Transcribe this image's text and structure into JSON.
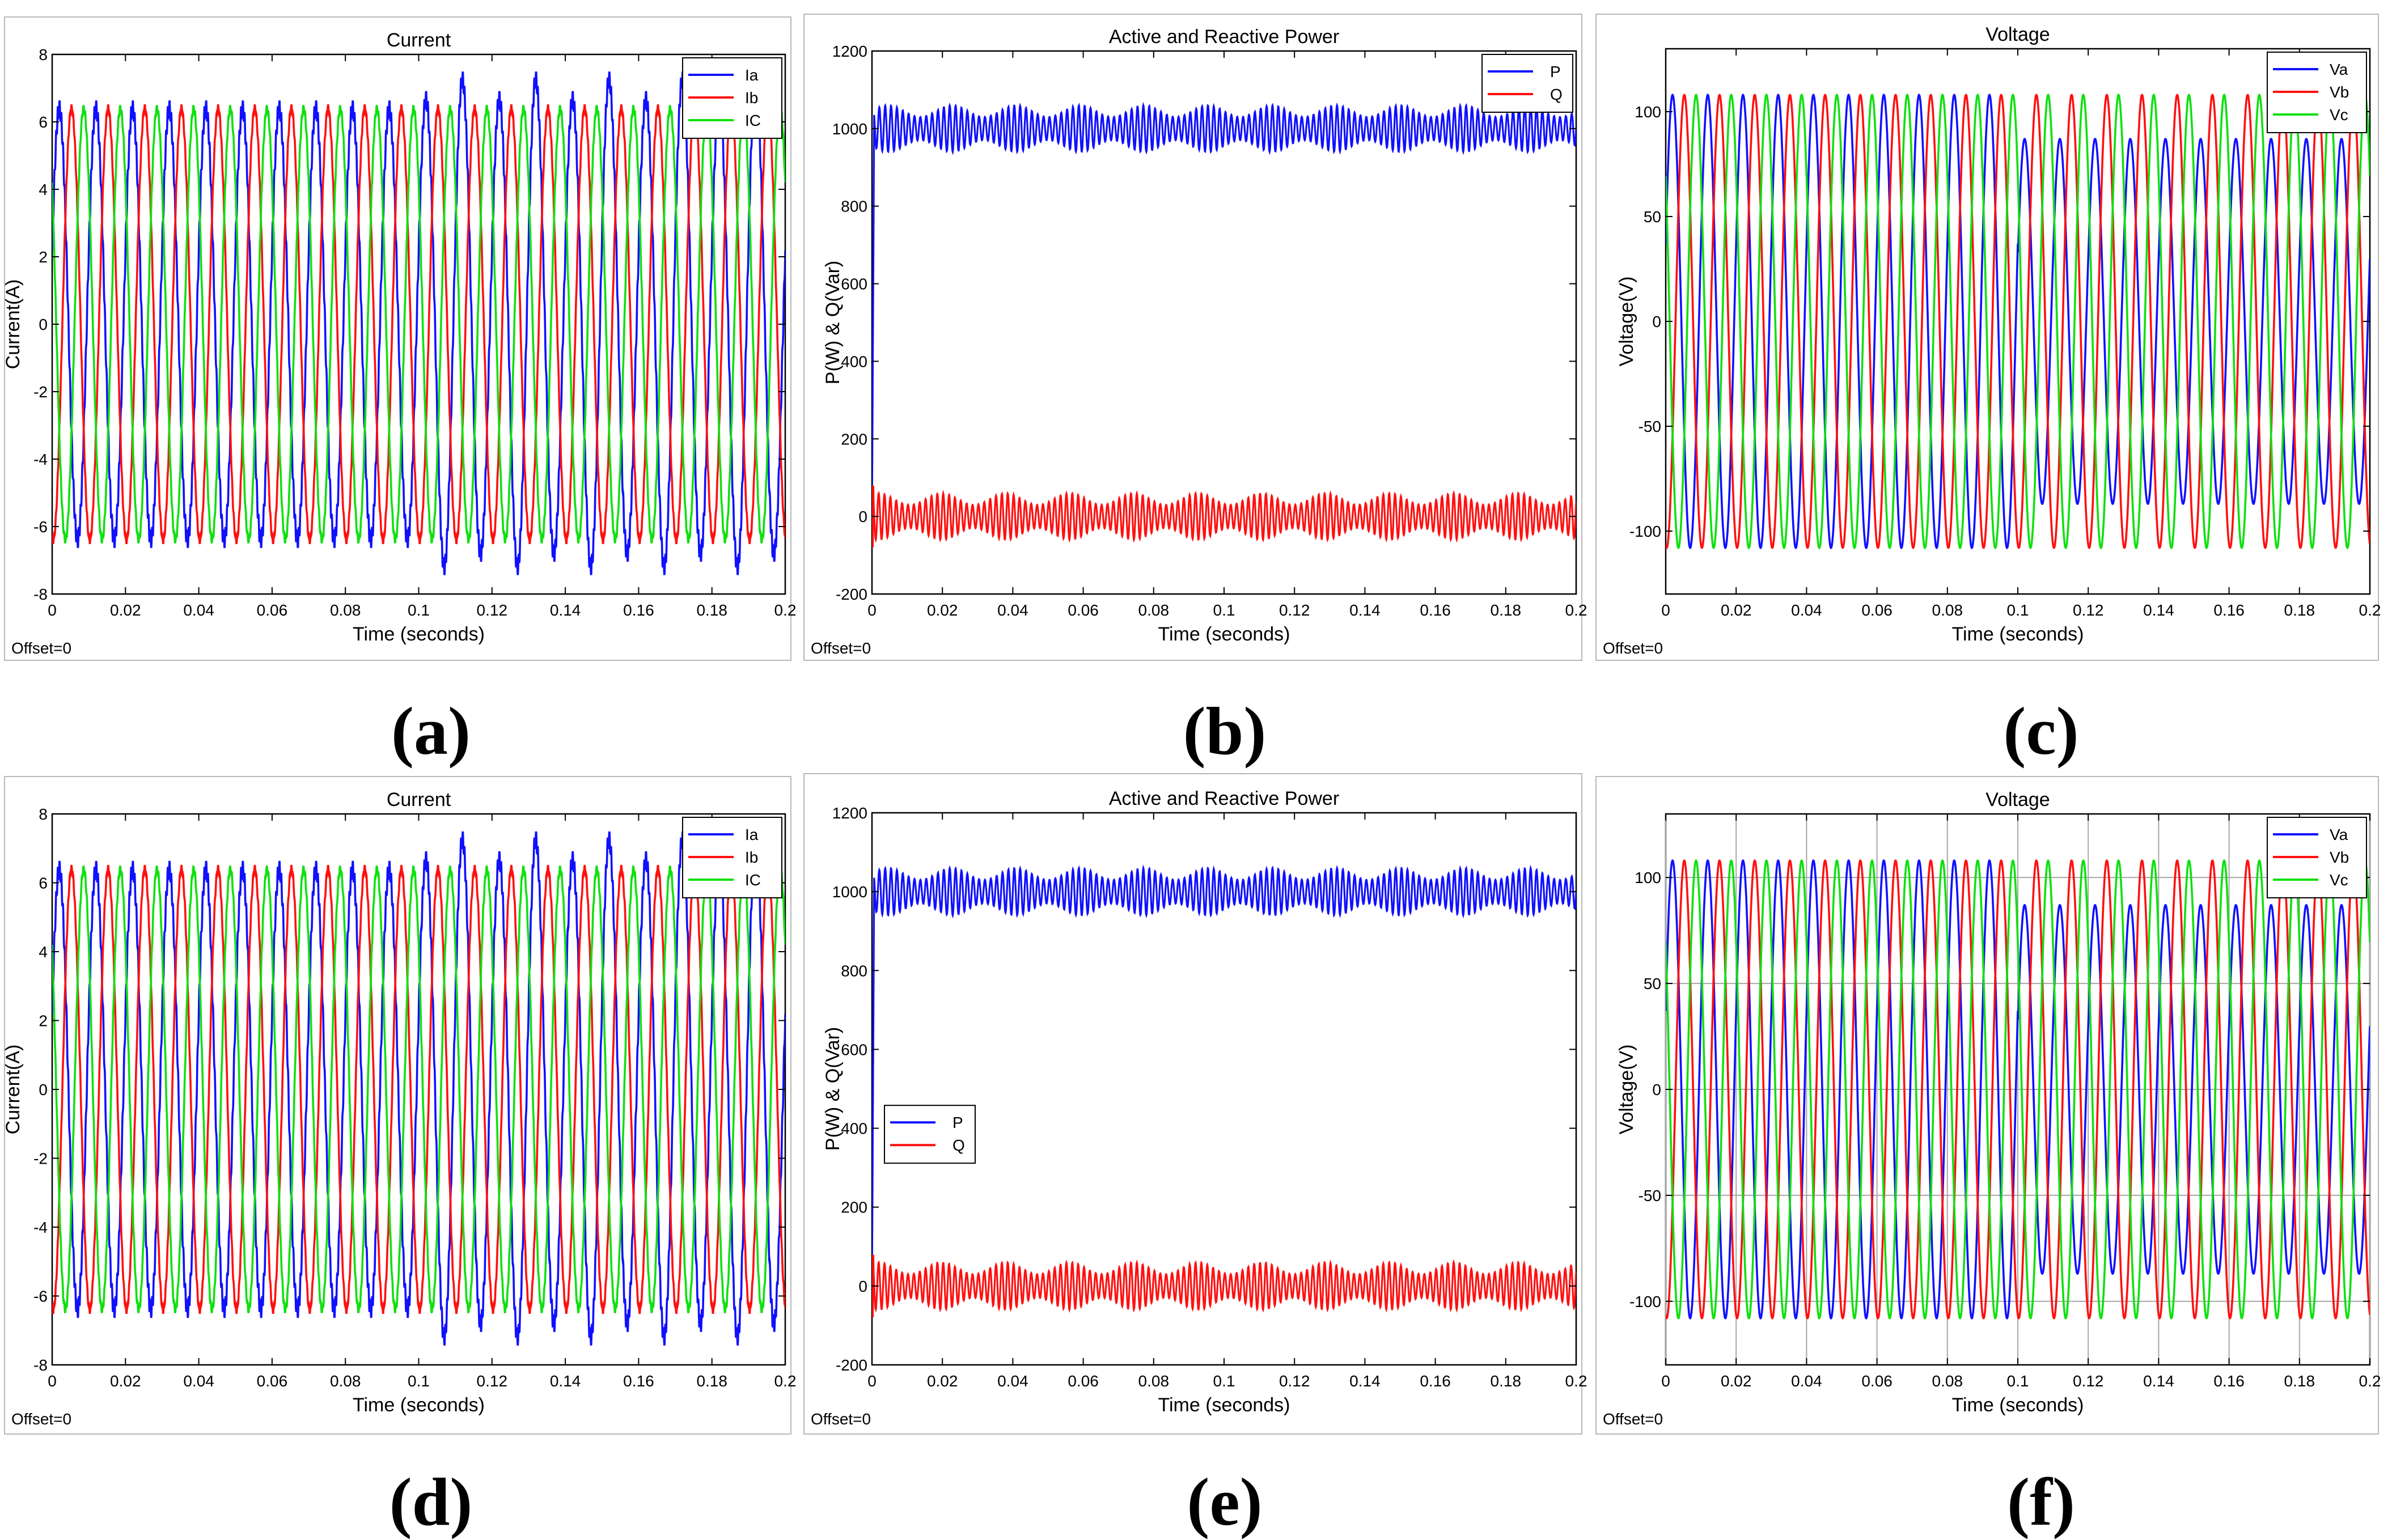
{
  "colors": {
    "blue": "#1010ff",
    "red": "#ff1010",
    "green": "#10e010"
  },
  "chart_data": [
    {
      "panel": "(a)",
      "type": "line",
      "title": "Current",
      "xlabel": "Time (seconds)",
      "ylabel": "Current(A)",
      "offset_label": "Offset=0",
      "xlim": [
        0,
        0.2
      ],
      "ylim": [
        -8,
        8
      ],
      "xticks": [
        0,
        0.02,
        0.04,
        0.06,
        0.08,
        0.1,
        0.12,
        0.14,
        0.16,
        0.18,
        0.2
      ],
      "yticks": [
        -8,
        -6,
        -4,
        -2,
        0,
        2,
        4,
        6,
        8
      ],
      "grid": false,
      "legend_position": "top-right",
      "series": [
        {
          "name": "Ia",
          "color": "blue",
          "amplitude": 6.4,
          "phase_deg": 0,
          "frequency_hz": 100,
          "ripple": 0.25,
          "note": "peaks reach about 7.3 A between 0.1 s and 0.2 s"
        },
        {
          "name": "Ib",
          "color": "red",
          "amplitude": 6.4,
          "phase_deg": -120,
          "frequency_hz": 100,
          "ripple": 0.1
        },
        {
          "name": "IC",
          "color": "green",
          "amplitude": 6.4,
          "phase_deg": 120,
          "frequency_hz": 100,
          "ripple": 0.1
        }
      ]
    },
    {
      "panel": "(b)",
      "type": "line",
      "title": "Active and Reactive Power",
      "xlabel": "Time (seconds)",
      "ylabel": "P(W) & Q(Var)",
      "offset_label": "Offset=0",
      "xlim": [
        0,
        0.2
      ],
      "ylim": [
        -200,
        1200
      ],
      "xticks": [
        0,
        0.02,
        0.04,
        0.06,
        0.08,
        0.1,
        0.12,
        0.14,
        0.16,
        0.18,
        0.2
      ],
      "yticks": [
        -200,
        0,
        200,
        400,
        600,
        800,
        1000,
        1200
      ],
      "grid": false,
      "legend_position": "top-right",
      "series": [
        {
          "name": "P",
          "color": "blue",
          "mean": 1000,
          "band": [
            940,
            1060
          ]
        },
        {
          "name": "Q",
          "color": "red",
          "mean": 0,
          "band": [
            -60,
            60
          ]
        }
      ]
    },
    {
      "panel": "(c)",
      "type": "line",
      "title": "Voltage",
      "xlabel": "Time (seconds)",
      "ylabel": "Voltage(V)",
      "offset_label": "Offset=0",
      "xlim": [
        0,
        0.2
      ],
      "ylim": [
        -130,
        130
      ],
      "xticks": [
        0,
        0.02,
        0.04,
        0.06,
        0.08,
        0.1,
        0.12,
        0.14,
        0.16,
        0.18,
        0.2
      ],
      "yticks": [
        -100,
        -50,
        0,
        50,
        100
      ],
      "grid": false,
      "legend_position": "top-right",
      "series": [
        {
          "name": "Va",
          "color": "blue",
          "amplitude": 108,
          "phase_deg": 0,
          "frequency_hz": 100,
          "note": "amplitude drops to about 87 V after 0.1 s"
        },
        {
          "name": "Vb",
          "color": "red",
          "amplitude": 108,
          "phase_deg": -120,
          "frequency_hz": 100
        },
        {
          "name": "Vc",
          "color": "green",
          "amplitude": 108,
          "phase_deg": 120,
          "frequency_hz": 100
        }
      ]
    },
    {
      "panel": "(d)",
      "type": "line",
      "title": "Current",
      "xlabel": "Time (seconds)",
      "ylabel": "Current(A)",
      "offset_label": "Offset=0",
      "xlim": [
        0,
        0.2
      ],
      "ylim": [
        -8,
        8
      ],
      "xticks": [
        0,
        0.02,
        0.04,
        0.06,
        0.08,
        0.1,
        0.12,
        0.14,
        0.16,
        0.18,
        0.2
      ],
      "yticks": [
        -8,
        -6,
        -4,
        -2,
        0,
        2,
        4,
        6,
        8
      ],
      "grid": false,
      "legend_position": "top-right",
      "series": [
        {
          "name": "Ia",
          "color": "blue",
          "amplitude": 6.4,
          "phase_deg": 0,
          "frequency_hz": 100,
          "ripple": 0.25,
          "note": "peaks reach about 7.3 A between 0.1 s and 0.2 s"
        },
        {
          "name": "Ib",
          "color": "red",
          "amplitude": 6.4,
          "phase_deg": -120,
          "frequency_hz": 100,
          "ripple": 0.1
        },
        {
          "name": "IC",
          "color": "green",
          "amplitude": 6.4,
          "phase_deg": 120,
          "frequency_hz": 100,
          "ripple": 0.1
        }
      ]
    },
    {
      "panel": "(e)",
      "type": "line",
      "title": "Active and Reactive Power",
      "xlabel": "Time (seconds)",
      "ylabel": "P(W) & Q(Var)",
      "offset_label": "Offset=0",
      "xlim": [
        0,
        0.2
      ],
      "ylim": [
        -200,
        1200
      ],
      "xticks": [
        0,
        0.02,
        0.04,
        0.06,
        0.08,
        0.1,
        0.12,
        0.14,
        0.16,
        0.18,
        0.2
      ],
      "yticks": [
        -200,
        0,
        200,
        400,
        600,
        800,
        1000,
        1200
      ],
      "grid": false,
      "legend_position": "middle-left",
      "series": [
        {
          "name": "P",
          "color": "blue",
          "mean": 1000,
          "band": [
            940,
            1060
          ]
        },
        {
          "name": "Q",
          "color": "red",
          "mean": 0,
          "band": [
            -60,
            60
          ]
        }
      ]
    },
    {
      "panel": "(f)",
      "type": "line",
      "title": "Voltage",
      "xlabel": "Time (seconds)",
      "ylabel": "Voltage(V)",
      "offset_label": "Offset=0",
      "xlim": [
        0,
        0.2
      ],
      "ylim": [
        -130,
        130
      ],
      "xticks": [
        0,
        0.02,
        0.04,
        0.06,
        0.08,
        0.1,
        0.12,
        0.14,
        0.16,
        0.18,
        0.2
      ],
      "yticks": [
        -100,
        -50,
        0,
        50,
        100
      ],
      "grid": true,
      "legend_position": "top-right",
      "series": [
        {
          "name": "Va",
          "color": "blue",
          "amplitude": 108,
          "phase_deg": 0,
          "frequency_hz": 100,
          "note": "amplitude drops to about 87 V after 0.1 s"
        },
        {
          "name": "Vb",
          "color": "red",
          "amplitude": 108,
          "phase_deg": -120,
          "frequency_hz": 100
        },
        {
          "name": "Vc",
          "color": "green",
          "amplitude": 108,
          "phase_deg": 120,
          "frequency_hz": 100
        }
      ]
    }
  ]
}
